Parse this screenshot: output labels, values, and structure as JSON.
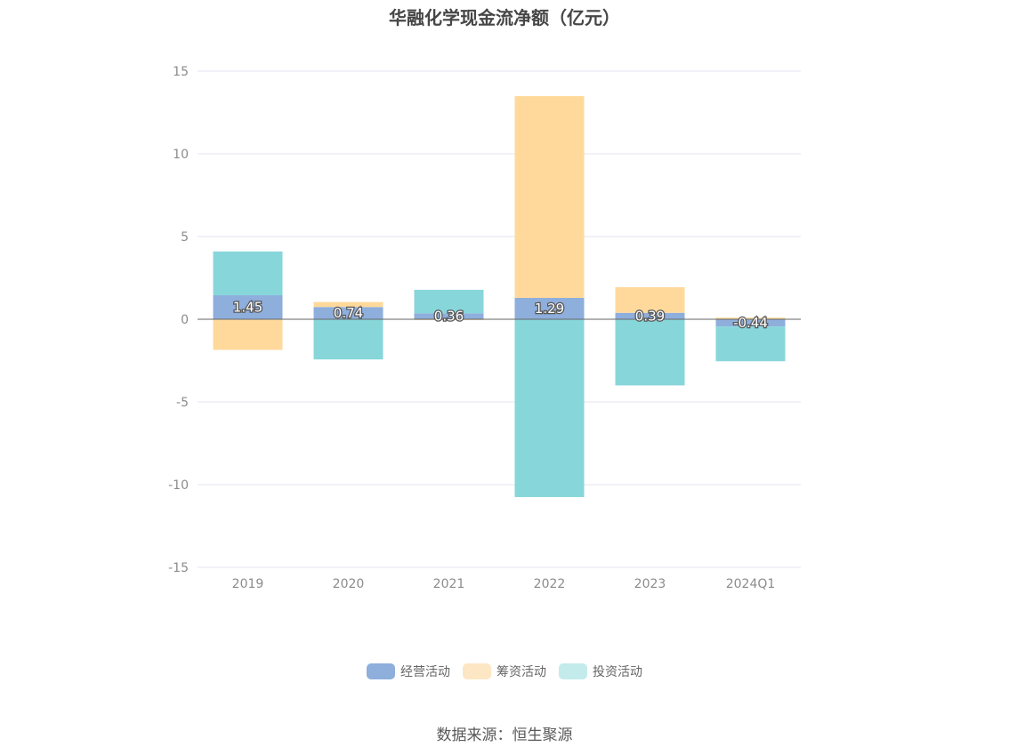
{
  "chart_data": {
    "type": "bar",
    "stacked": true,
    "title": "华融化学现金流净额（亿元）",
    "categories": [
      "2019",
      "2020",
      "2021",
      "2022",
      "2023",
      "2024Q1"
    ],
    "series": [
      {
        "name": "经营活动",
        "color": "#8eaedc",
        "values": [
          1.45,
          0.74,
          0.36,
          1.29,
          0.39,
          -0.44
        ],
        "labels": [
          "1.45",
          "0.74",
          "0.36",
          "1.29",
          "0.39",
          "-0.44"
        ]
      },
      {
        "name": "筹资活动",
        "color": "#ffd99b",
        "values": [
          -1.85,
          0.3,
          -0.05,
          12.2,
          1.55,
          0.1
        ]
      },
      {
        "name": "投资活动",
        "color": "#87d6da",
        "values": [
          2.65,
          -2.43,
          1.42,
          -10.75,
          -4.0,
          -2.1
        ]
      }
    ],
    "ylim": [
      -15,
      15
    ],
    "yticks": [
      "-15",
      "-10",
      "-5",
      "0",
      "5",
      "10",
      "15"
    ],
    "grid": true,
    "legend_position": "bottom",
    "source": "数据来源：恒生聚源"
  }
}
